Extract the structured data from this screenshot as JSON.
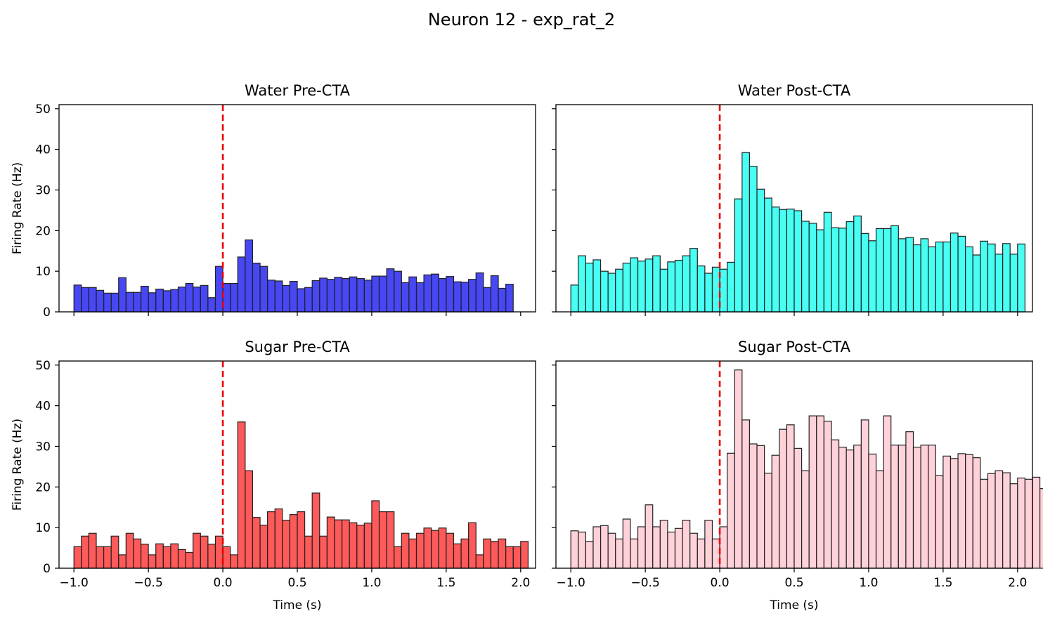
{
  "title": "Neuron 12 - exp_rat_2",
  "chart_data": [
    {
      "type": "bar",
      "title": "Water Pre-CTA",
      "xlabel": "",
      "ylabel": "Firing Rate (Hz)",
      "xlim": [
        -1.1,
        2.1
      ],
      "ylim": [
        0,
        51
      ],
      "bin_start": -1.0,
      "bin_width": 0.05,
      "color": "#0000ee",
      "marker_x": 0.0,
      "xticks": [
        "−1.0",
        "−0.5",
        "0.0",
        "0.5",
        "1.0",
        "1.5",
        "2.0"
      ],
      "yticks": [
        "0",
        "10",
        "20",
        "30",
        "40",
        "50"
      ],
      "show_xticklabels": false,
      "show_yticklabels": true,
      "values": [
        6.6,
        6.0,
        6.0,
        5.3,
        4.6,
        4.6,
        8.4,
        4.8,
        4.8,
        6.3,
        4.7,
        5.6,
        5.2,
        5.5,
        6.1,
        7.0,
        6.1,
        6.5,
        3.5,
        11.2,
        7.0,
        7.0,
        13.5,
        17.7,
        12.0,
        11.2,
        7.8,
        7.6,
        6.5,
        7.5,
        5.7,
        6.0,
        7.7,
        8.3,
        8.0,
        8.5,
        8.2,
        8.6,
        8.2,
        7.8,
        8.8,
        8.8,
        10.6,
        10.0,
        7.2,
        8.6,
        7.2,
        9.1,
        9.3,
        8.2,
        8.7,
        7.4,
        7.3,
        8.0,
        9.6,
        6.0,
        8.9,
        5.8,
        6.8
      ]
    },
    {
      "type": "bar",
      "title": "Water Post-CTA",
      "xlabel": "",
      "ylabel": "",
      "xlim": [
        -1.1,
        2.1
      ],
      "ylim": [
        0,
        51
      ],
      "bin_start": -1.0,
      "bin_width": 0.05,
      "color": "#00ffee",
      "marker_x": 0.0,
      "xticks": [
        "−1.0",
        "−0.5",
        "0.0",
        "0.5",
        "1.0",
        "1.5",
        "2.0"
      ],
      "yticks": [
        "0",
        "10",
        "20",
        "30",
        "40",
        "50"
      ],
      "show_xticklabels": false,
      "show_yticklabels": false,
      "values": [
        6.6,
        13.8,
        12.0,
        12.8,
        10.0,
        9.5,
        10.5,
        12.0,
        13.3,
        12.5,
        13.0,
        13.8,
        10.5,
        12.3,
        12.7,
        13.8,
        15.6,
        11.3,
        9.5,
        11.0,
        10.5,
        12.2,
        27.8,
        39.2,
        35.8,
        30.2,
        28.0,
        25.8,
        25.2,
        25.3,
        24.9,
        22.3,
        21.8,
        20.2,
        24.5,
        20.7,
        20.6,
        22.2,
        23.6,
        19.3,
        17.5,
        20.5,
        20.5,
        21.2,
        18.0,
        18.3,
        16.5,
        18.0,
        16.0,
        17.2,
        17.2,
        19.4,
        18.6,
        16.0,
        14.0,
        17.4,
        16.7,
        14.2,
        16.8,
        14.2,
        16.7
      ]
    },
    {
      "type": "bar",
      "title": "Sugar Pre-CTA",
      "xlabel": "Time (s)",
      "ylabel": "Firing Rate (Hz)",
      "xlim": [
        -1.1,
        2.1
      ],
      "ylim": [
        0,
        51
      ],
      "bin_start": -1.0,
      "bin_width": 0.05,
      "color": "#ff1a1a",
      "marker_x": 0.0,
      "xticks": [
        "−1.0",
        "−0.5",
        "0.0",
        "0.5",
        "1.0",
        "1.5",
        "2.0"
      ],
      "yticks": [
        "0",
        "10",
        "20",
        "30",
        "40",
        "50"
      ],
      "show_xticklabels": true,
      "show_yticklabels": true,
      "values": [
        5.3,
        7.9,
        8.6,
        5.3,
        5.3,
        7.9,
        3.3,
        8.6,
        7.2,
        5.9,
        3.3,
        6.0,
        5.3,
        6.0,
        4.6,
        3.9,
        8.6,
        7.9,
        5.9,
        7.9,
        5.3,
        3.3,
        36.0,
        24.0,
        12.5,
        10.6,
        13.9,
        14.6,
        11.8,
        13.2,
        13.9,
        7.9,
        18.5,
        7.9,
        12.6,
        11.9,
        11.9,
        11.2,
        10.6,
        11.1,
        16.6,
        13.9,
        13.9,
        5.3,
        8.6,
        7.2,
        8.6,
        9.9,
        9.3,
        9.9,
        8.6,
        6.0,
        7.2,
        11.2,
        3.3,
        7.2,
        6.6,
        7.2,
        5.3,
        5.3,
        6.6
      ]
    },
    {
      "type": "bar",
      "title": "Sugar Post-CTA",
      "xlabel": "Time (s)",
      "ylabel": "",
      "xlim": [
        -1.1,
        2.1
      ],
      "ylim": [
        0,
        51
      ],
      "bin_start": -1.0,
      "bin_width": 0.05,
      "color": "#ffc0cb",
      "marker_x": 0.0,
      "xticks": [
        "−1.0",
        "−0.5",
        "0.0",
        "0.5",
        "1.0",
        "1.5",
        "2.0"
      ],
      "yticks": [
        "0",
        "10",
        "20",
        "30",
        "40",
        "50"
      ],
      "show_xticklabels": true,
      "show_yticklabels": false,
      "values": [
        9.2,
        8.9,
        6.6,
        10.2,
        10.5,
        8.6,
        7.2,
        12.1,
        7.2,
        10.2,
        15.6,
        10.2,
        11.8,
        8.9,
        9.8,
        11.8,
        8.6,
        7.2,
        11.8,
        7.2,
        10.2,
        28.3,
        48.8,
        36.5,
        30.6,
        30.2,
        23.4,
        27.8,
        34.2,
        35.3,
        29.5,
        24.0,
        37.5,
        37.5,
        36.2,
        31.6,
        29.8,
        29.1,
        30.3,
        36.5,
        28.1,
        24.0,
        37.5,
        30.3,
        30.3,
        33.6,
        29.8,
        30.3,
        30.3,
        22.8,
        27.6,
        27.0,
        28.2,
        28.0,
        27.2,
        21.9,
        23.3,
        24.0,
        23.5,
        20.8,
        22.2,
        21.9,
        22.4,
        19.6
      ]
    }
  ]
}
